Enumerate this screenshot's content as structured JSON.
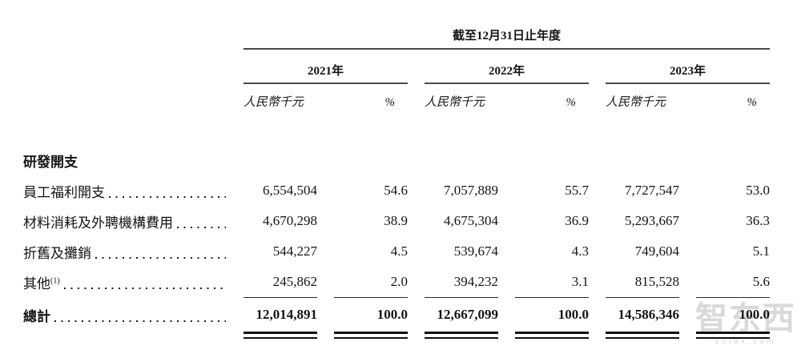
{
  "table": {
    "period_header": "截至12月31日止年度",
    "years": [
      {
        "label": "2021年",
        "unit": "人民幣千元",
        "pct": "%"
      },
      {
        "label": "2022年",
        "unit": "人民幣千元",
        "pct": "%"
      },
      {
        "label": "2023年",
        "unit": "人民幣千元",
        "pct": "%"
      }
    ],
    "section": "研發開支",
    "rows": [
      {
        "label": "員工福利開支",
        "sup": "",
        "a1": "6,554,504",
        "p1": "54.6",
        "a2": "7,057,889",
        "p2": "55.7",
        "a3": "7,727,547",
        "p3": "53.0"
      },
      {
        "label": "材料消耗及外聘機構費用",
        "sup": "",
        "a1": "4,670,298",
        "p1": "38.9",
        "a2": "4,675,304",
        "p2": "36.9",
        "a3": "5,293,667",
        "p3": "36.3"
      },
      {
        "label": "折舊及攤銷",
        "sup": "",
        "a1": "544,227",
        "p1": "4.5",
        "a2": "539,674",
        "p2": "4.3",
        "a3": "749,604",
        "p3": "5.1"
      },
      {
        "label": "其他",
        "sup": "(1)",
        "a1": "245,862",
        "p1": "2.0",
        "a2": "394,232",
        "p2": "3.1",
        "a3": "815,528",
        "p3": "5.6"
      }
    ],
    "total": {
      "label": "總計",
      "a1": "12,014,891",
      "p1": "100.0",
      "a2": "12,667,099",
      "p2": "100.0",
      "a3": "14,586,346",
      "p3": "100.0"
    }
  },
  "watermark": {
    "logo": "智东西",
    "domain": "zhidx.com"
  },
  "colors": {
    "rule_gray": "#4a4a4a",
    "rule_thin": "#2a2a2a",
    "rule_heavy": "#101010",
    "text": "#141414",
    "watermark": "#d9d9d9"
  }
}
